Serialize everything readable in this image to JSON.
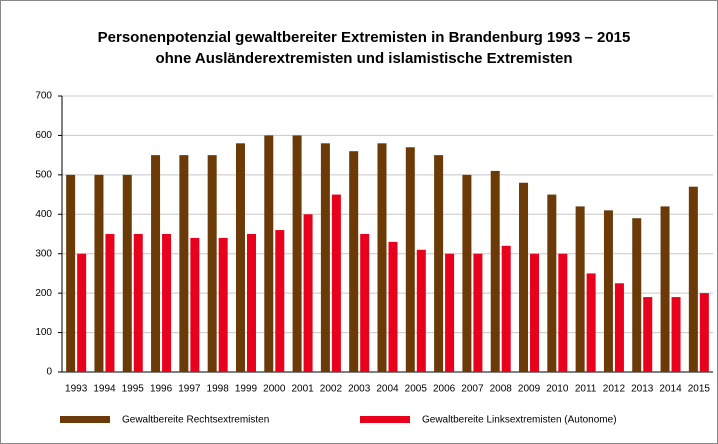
{
  "chart_data": {
    "type": "bar",
    "title": "Personenpotenzial gewaltbereiter Extremisten in Brandenburg 1993 – 2015",
    "subtitle": "ohne Ausländerextremisten und islamistische Extremisten",
    "categories": [
      "1993",
      "1994",
      "1995",
      "1996",
      "1997",
      "1998",
      "1999",
      "2000",
      "2001",
      "2002",
      "2003",
      "2004",
      "2005",
      "2006",
      "2007",
      "2008",
      "2009",
      "2010",
      "2011",
      "2012",
      "2013",
      "2014",
      "2015"
    ],
    "series": [
      {
        "name": "Gewaltbereite Rechtsextremisten",
        "color": "#6b3a07",
        "values": [
          500,
          500,
          500,
          550,
          550,
          550,
          580,
          600,
          600,
          580,
          560,
          580,
          570,
          550,
          500,
          510,
          480,
          450,
          420,
          410,
          390,
          420,
          470
        ]
      },
      {
        "name": "Gewaltbereite Linksextremisten (Autonome)",
        "color": "#e8001c",
        "values": [
          300,
          350,
          350,
          350,
          340,
          340,
          350,
          360,
          400,
          450,
          350,
          330,
          310,
          300,
          300,
          320,
          300,
          300,
          250,
          225,
          190,
          190,
          200
        ]
      }
    ],
    "ylim": [
      0,
      700
    ],
    "yticks": [
      0,
      100,
      200,
      300,
      400,
      500,
      600,
      700
    ],
    "grid": true,
    "legend": "bottom"
  }
}
